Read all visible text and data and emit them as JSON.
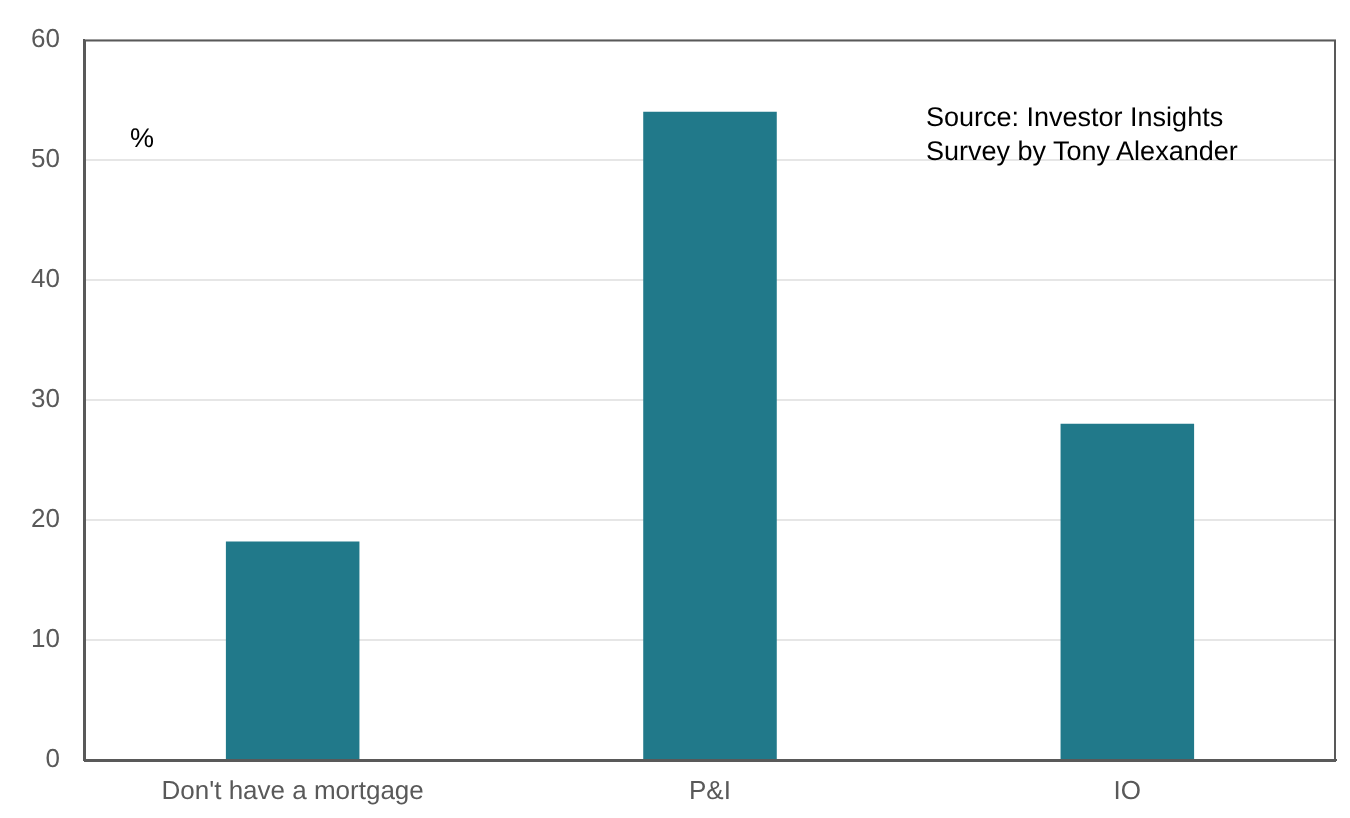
{
  "chart_data": {
    "type": "bar",
    "categories": [
      "Don't have a mortgage",
      "P&I",
      "IO"
    ],
    "values": [
      18.2,
      54,
      28
    ],
    "color": "#21798a",
    "ylabel": "%",
    "annotations": [
      "Source: Investor Insights Survey by Tony Alexander"
    ],
    "ylim": [
      0,
      60
    ],
    "yticks": [
      0,
      10,
      20,
      30,
      40,
      50,
      60
    ],
    "grid": "y"
  }
}
